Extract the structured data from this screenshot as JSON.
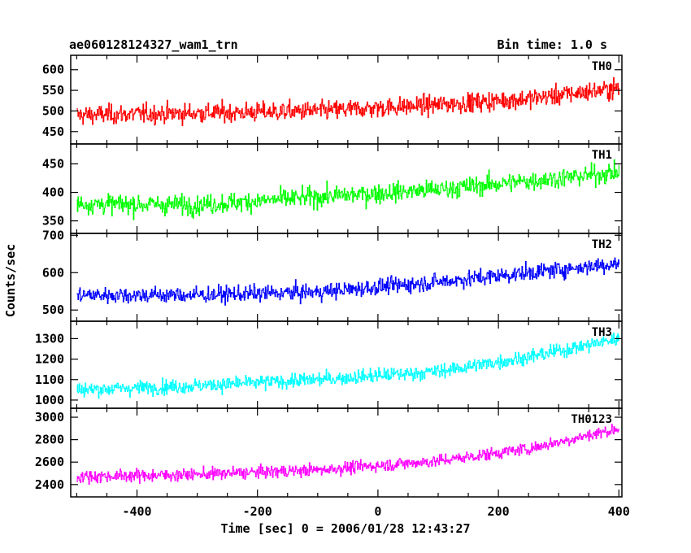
{
  "chart_data": {
    "type": "line",
    "title": "ae060128124327_wam1_trn",
    "bin_time_label": "Bin time: 1.0 s",
    "xlabel": "Time [sec] 0 = 2006/01/28 12:43:27",
    "ylabel": "Counts/sec",
    "xlim": [
      -510,
      405
    ],
    "xticks": [
      -400,
      -200,
      0,
      200,
      400
    ],
    "grid": false,
    "panels": [
      {
        "name": "TH0",
        "color": "#ff0000",
        "ylim": [
          420,
          635
        ],
        "yticks": [
          450,
          500,
          550,
          600
        ],
        "trend": [
          [
            -500,
            490
          ],
          [
            -300,
            495
          ],
          [
            -100,
            500
          ],
          [
            100,
            515
          ],
          [
            250,
            530
          ],
          [
            400,
            555
          ]
        ],
        "noise_amplitude": 30
      },
      {
        "name": "TH1",
        "color": "#00ff00",
        "ylim": [
          328,
          485
        ],
        "yticks": [
          350,
          400,
          450
        ],
        "trend": [
          [
            -500,
            380
          ],
          [
            -300,
            378
          ],
          [
            -100,
            392
          ],
          [
            100,
            405
          ],
          [
            250,
            420
          ],
          [
            400,
            435
          ]
        ],
        "noise_amplitude": 22
      },
      {
        "name": "TH2",
        "color": "#0000ff",
        "ylim": [
          470,
          705
        ],
        "yticks": [
          500,
          600,
          700
        ],
        "trend": [
          [
            -500,
            540
          ],
          [
            -300,
            540
          ],
          [
            -100,
            548
          ],
          [
            100,
            575
          ],
          [
            250,
            600
          ],
          [
            400,
            625
          ]
        ],
        "noise_amplitude": 28
      },
      {
        "name": "TH3",
        "color": "#00ffff",
        "ylim": [
          960,
          1385
        ],
        "yticks": [
          1000,
          1100,
          1200,
          1300
        ],
        "trend": [
          [
            -500,
            1050
          ],
          [
            -300,
            1070
          ],
          [
            -100,
            1100
          ],
          [
            100,
            1140
          ],
          [
            250,
            1210
          ],
          [
            400,
            1300
          ]
        ],
        "noise_amplitude": 45
      },
      {
        "name": "TH0123",
        "color": "#ff00ff",
        "ylim": [
          2290,
          3080
        ],
        "yticks": [
          2400,
          2600,
          2800,
          3000
        ],
        "trend": [
          [
            -500,
            2470
          ],
          [
            -300,
            2490
          ],
          [
            -100,
            2530
          ],
          [
            100,
            2610
          ],
          [
            250,
            2720
          ],
          [
            400,
            2900
          ]
        ],
        "noise_amplitude": 70
      }
    ]
  }
}
